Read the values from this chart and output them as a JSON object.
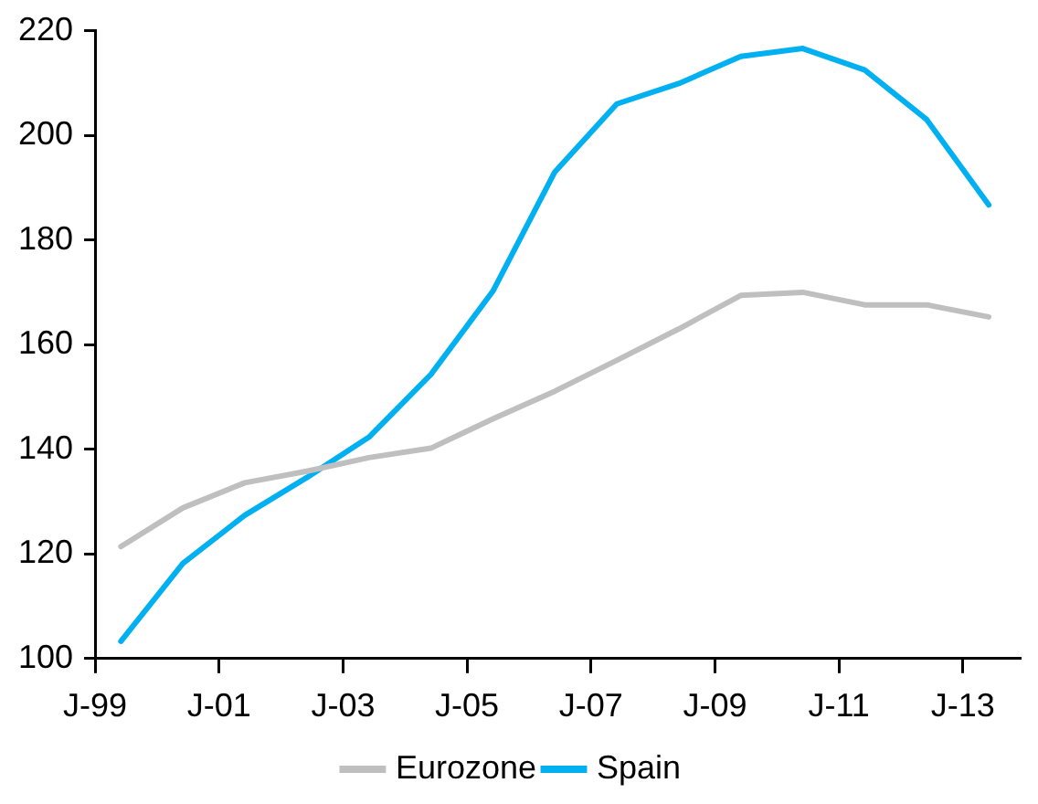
{
  "chart_data": {
    "type": "line",
    "x": [
      "1999-06",
      "2000-06",
      "2001-06",
      "2002-06",
      "2003-06",
      "2004-06",
      "2005-06",
      "2006-06",
      "2007-06",
      "2008-06",
      "2009-06",
      "2010-06",
      "2011-06",
      "2012-06",
      "2013-06"
    ],
    "series": [
      {
        "name": "Eurozone",
        "color": "#bfbfbf",
        "values": [
          121.4,
          128.8,
          133.6,
          135.8,
          138.4,
          140.2,
          145.8,
          151.1,
          157.0,
          163.0,
          169.4,
          170.0,
          167.6,
          167.6,
          165.3
        ]
      },
      {
        "name": "Spain",
        "color": "#00b0f0",
        "values": [
          103.3,
          118.2,
          127.4,
          134.6,
          142.3,
          154.3,
          170.2,
          193.0,
          206.0,
          209.9,
          215.1,
          216.6,
          212.5,
          203.0,
          186.7
        ]
      }
    ],
    "xlim": [
      "1999-01",
      "2013-12"
    ],
    "xticks": [
      {
        "value": "1999-01",
        "label": "J-99"
      },
      {
        "value": "2001-01",
        "label": "J-01"
      },
      {
        "value": "2003-01",
        "label": "J-03"
      },
      {
        "value": "2005-01",
        "label": "J-05"
      },
      {
        "value": "2007-01",
        "label": "J-07"
      },
      {
        "value": "2009-01",
        "label": "J-09"
      },
      {
        "value": "2011-01",
        "label": "J-11"
      },
      {
        "value": "2013-01",
        "label": "J-13"
      }
    ],
    "ylim": [
      100,
      220
    ],
    "yticks": [
      100,
      120,
      140,
      160,
      180,
      200,
      220
    ],
    "grid": false,
    "legend": "bottom",
    "marker": "none",
    "line_style": "solid"
  }
}
